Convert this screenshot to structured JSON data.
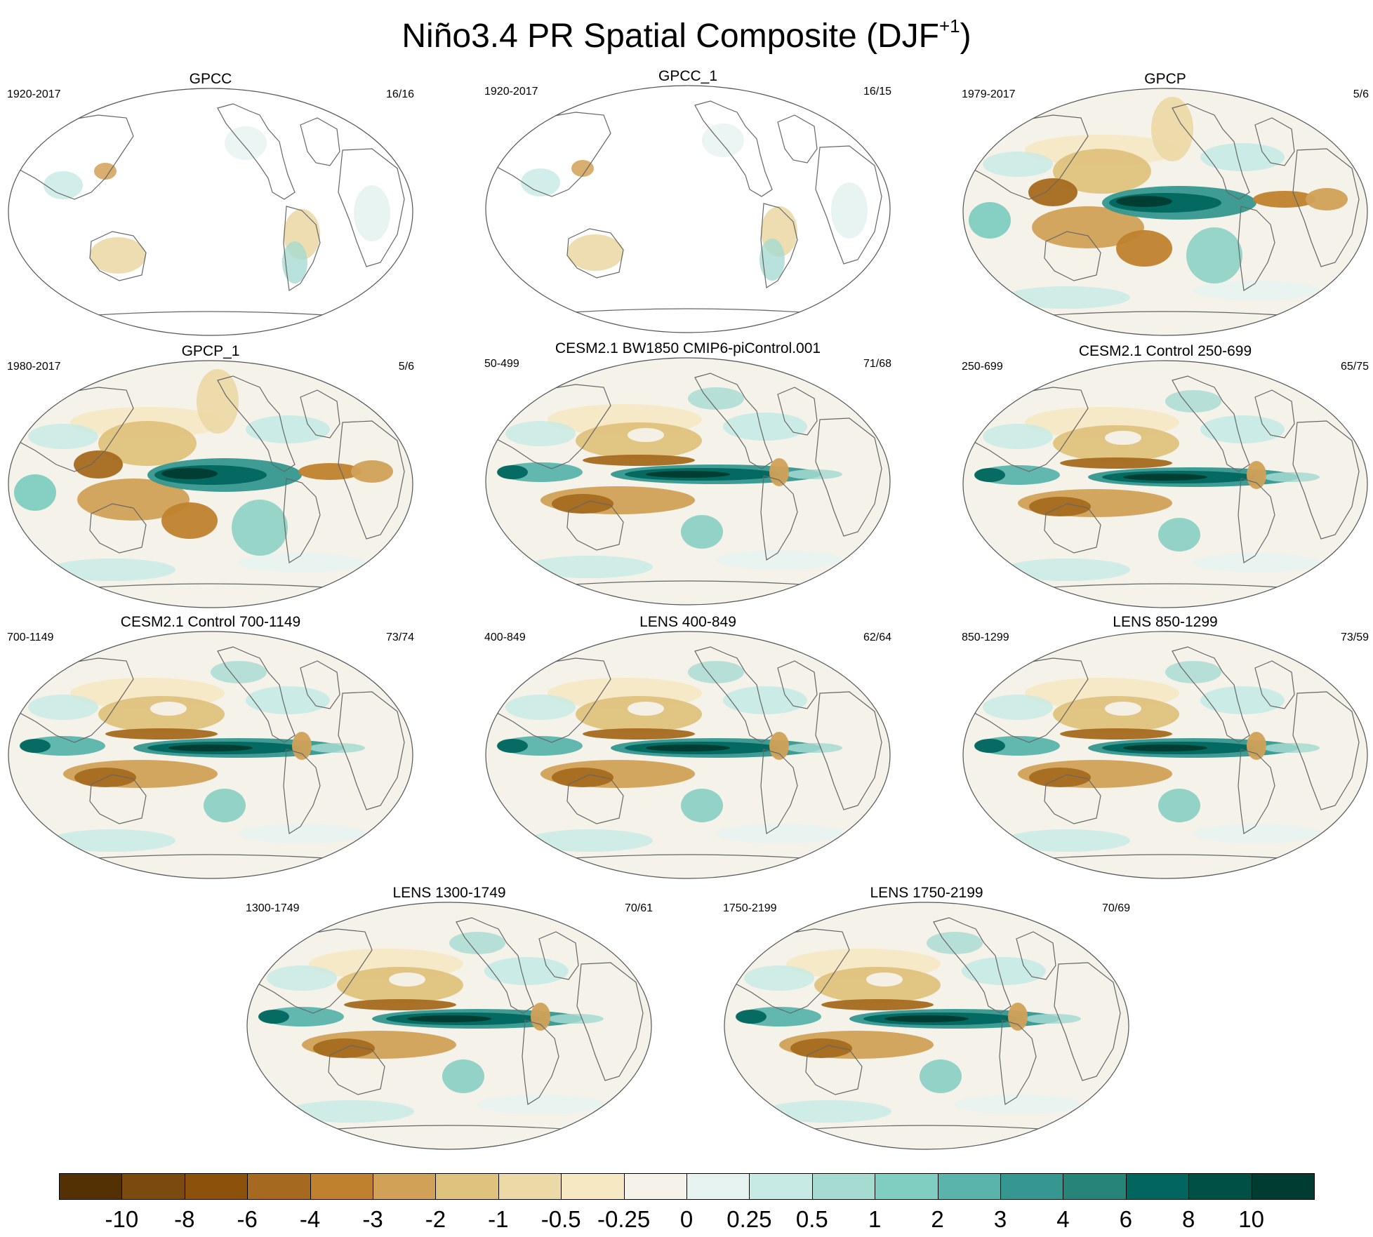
{
  "title": {
    "main": "Niño3.4 PR Spatial Composite (DJF",
    "superscript": "+1",
    "close": ")"
  },
  "panels": [
    {
      "title": "GPCC",
      "years": "1920-2017",
      "count": "16/16",
      "style": "obs"
    },
    {
      "title": "GPCC_1",
      "years": "1920-2017",
      "count": "16/15",
      "style": "obs"
    },
    {
      "title": "GPCP",
      "years": "1979-2017",
      "count": "5/6",
      "style": "gpcp"
    },
    {
      "title": "GPCP_1",
      "years": "1980-2017",
      "count": "5/6",
      "style": "gpcp"
    },
    {
      "title": "CESM2.1 BW1850 CMIP6-piControl.001",
      "years": "50-499",
      "count": "71/68",
      "style": "model"
    },
    {
      "title": "CESM2.1 Control 250-699",
      "years": "250-699",
      "count": "65/75",
      "style": "model"
    },
    {
      "title": "CESM2.1 Control 700-1149",
      "years": "700-1149",
      "count": "73/74",
      "style": "model"
    },
    {
      "title": "LENS 400-849",
      "years": "400-849",
      "count": "62/64",
      "style": "model"
    },
    {
      "title": "LENS 850-1299",
      "years": "850-1299",
      "count": "73/59",
      "style": "model"
    },
    {
      "title": "LENS 1300-1749",
      "years": "1300-1749",
      "count": "70/61",
      "style": "model"
    },
    {
      "title": "LENS 1750-2199",
      "years": "1750-2199",
      "count": "70/69",
      "style": "model"
    }
  ],
  "colorbar": {
    "labels": [
      "-10",
      "-8",
      "-6",
      "-4",
      "-3",
      "-2",
      "-1",
      "-0.5",
      "-0.25",
      "0",
      "0.25",
      "0.5",
      "1",
      "2",
      "3",
      "4",
      "6",
      "8",
      "10"
    ],
    "colors": [
      "#543005",
      "#7a4a0e",
      "#8c510a",
      "#a56a1f",
      "#bf812d",
      "#d1a157",
      "#dfc27d",
      "#ecd9a8",
      "#f6e8c3",
      "#f5f2ea",
      "#e6f3f0",
      "#c7eae5",
      "#a6dbd2",
      "#80cdc1",
      "#5ab4ac",
      "#35978f",
      "#268479",
      "#01665e",
      "#015046",
      "#003c30"
    ]
  }
}
